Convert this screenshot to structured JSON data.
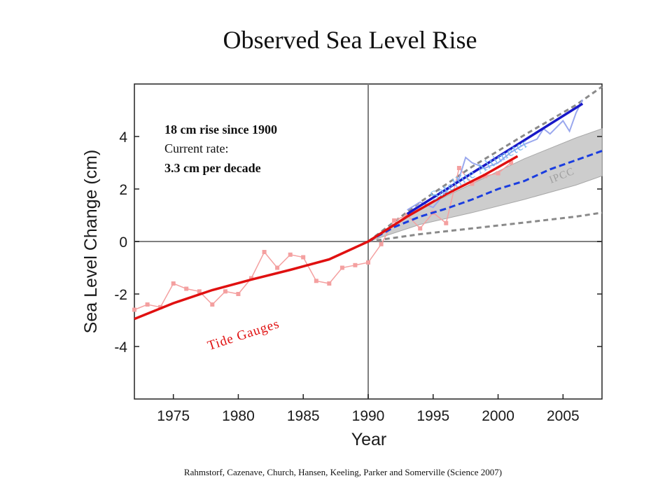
{
  "title": "Observed Sea Level Rise",
  "citation": "Rahmstorf, Cazenave, Church, Hansen, Keeling, Parker and Somerville (Science 2007)",
  "annotation": {
    "line1": "18 cm rise since 1900",
    "line2": "Current rate:",
    "line3": "3.3 cm per decade"
  },
  "colors": {
    "tide_points": "#f4a0a0",
    "tide_trend": "#e01010",
    "satellite_raw": "#9aa8ee",
    "satellite_trend": "#1818c8",
    "projection_central": "#1a3de0",
    "projection_bounds": "#8a8a8a",
    "projection_band": "#c8c8c8",
    "satellite_label": "#7ab8ee",
    "ipcc_label": "#a0a0a0"
  },
  "chart_data": {
    "type": "line",
    "xlabel": "Year",
    "ylabel": "Sea Level Change (cm)",
    "xlim": [
      1972,
      2008
    ],
    "ylim": [
      -6,
      6
    ],
    "xticks": [
      "1975",
      "1980",
      "1985",
      "1990",
      "1995",
      "2000",
      "2005"
    ],
    "yticks": [
      "4",
      "2",
      "0",
      "-2",
      "-4"
    ],
    "grid": false,
    "reference_lines": {
      "x": 1990,
      "y": 0
    },
    "series": [
      {
        "name": "Tide Gauges",
        "style": "points",
        "x": [
          1972,
          1973,
          1974,
          1975,
          1976,
          1977,
          1978,
          1979,
          1980,
          1981,
          1982,
          1983,
          1984,
          1985,
          1986,
          1987,
          1988,
          1989,
          1990,
          1991,
          1992,
          1993,
          1994,
          1995,
          1996,
          1997,
          1998,
          1999,
          2000,
          2001
        ],
        "y": [
          -2.6,
          -2.4,
          -2.5,
          -1.6,
          -1.8,
          -1.9,
          -2.4,
          -1.9,
          -2.0,
          -1.4,
          -0.4,
          -1.0,
          -0.5,
          -0.6,
          -1.5,
          -1.6,
          -1.0,
          -0.9,
          -0.8,
          -0.1,
          0.8,
          1.0,
          0.5,
          1.1,
          0.7,
          2.8,
          2.2,
          2.5,
          2.6,
          3.0
        ]
      },
      {
        "name": "Tide Gauges",
        "style": "trend",
        "x": [
          1972,
          1975,
          1978,
          1981,
          1984,
          1987,
          1990,
          1993,
          1996,
          1999,
          2001.5
        ],
        "y": [
          -2.95,
          -2.35,
          -1.85,
          -1.45,
          -1.08,
          -0.68,
          0.0,
          0.95,
          1.8,
          2.55,
          3.25
        ]
      },
      {
        "name": "Satellite Altimeter",
        "style": "raw",
        "x": [
          1993,
          1994,
          1995,
          1996,
          1997,
          1997.5,
          1998,
          1999,
          2000,
          2001,
          2002,
          2003,
          2003.5,
          2004,
          2005,
          2005.5,
          2006,
          2006.5
        ],
        "y": [
          1.2,
          1.5,
          1.3,
          1.9,
          2.4,
          3.2,
          3.0,
          2.8,
          3.0,
          3.4,
          3.7,
          3.9,
          4.3,
          4.1,
          4.6,
          4.2,
          4.9,
          5.4
        ]
      },
      {
        "name": "Satellite Altimeter",
        "style": "trend",
        "x": [
          1993,
          2006.5
        ],
        "y": [
          1.05,
          5.25
        ]
      },
      {
        "name": "IPCC",
        "style": "central",
        "x": [
          1990,
          1992,
          1994,
          1996,
          1998,
          2000,
          2002,
          2004,
          2006,
          2008
        ],
        "y": [
          0.0,
          0.55,
          0.95,
          1.25,
          1.6,
          2.0,
          2.3,
          2.75,
          3.1,
          3.45
        ]
      },
      {
        "name": "IPCC",
        "style": "upper",
        "x": [
          1990,
          1994,
          1998,
          2002,
          2006,
          2008
        ],
        "y": [
          0.0,
          1.5,
          2.85,
          4.05,
          5.2,
          5.9
        ]
      },
      {
        "name": "IPCC",
        "style": "lower",
        "x": [
          1990,
          1994,
          1998,
          2002,
          2006,
          2008
        ],
        "y": [
          0.0,
          0.28,
          0.5,
          0.72,
          0.95,
          1.1
        ]
      }
    ],
    "band": {
      "x": [
        1990,
        1994,
        1998,
        2002,
        2006,
        2008
      ],
      "upper": [
        0.0,
        1.25,
        2.2,
        3.15,
        3.95,
        4.3
      ],
      "lower": [
        0.0,
        0.65,
        1.1,
        1.6,
        2.15,
        2.5
      ]
    },
    "series_labels": [
      {
        "text": "Tide Gauges",
        "x": 1980.5,
        "y": -3.7,
        "angle": -18
      },
      {
        "text": "Satellite Altimeter",
        "x": 1998.7,
        "y": 2.6,
        "angle": -30
      },
      {
        "text": "IPCC",
        "x": 2005,
        "y": 2.4,
        "angle": -22
      }
    ]
  }
}
